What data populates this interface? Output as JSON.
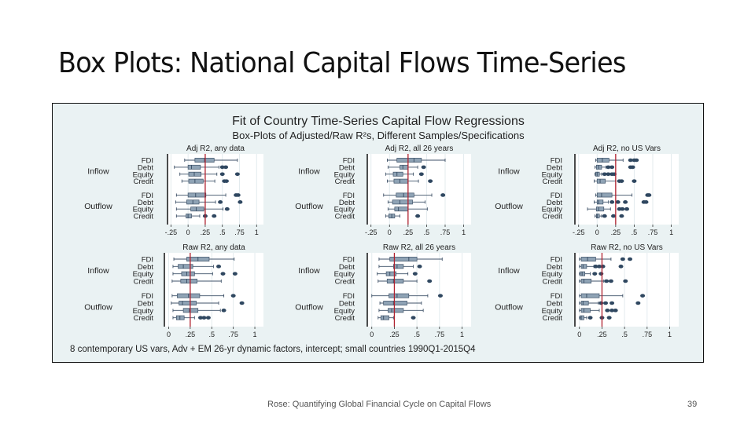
{
  "slide": {
    "title": "Box Plots: National Capital Flows Time-Series",
    "footer": "Rose: Quantifying Global Financial Cycle on Capital Flows",
    "page_number": "39"
  },
  "colors": {
    "background": "#eaf2f3",
    "plot_bg": "#ffffff",
    "box_fill": "#8fa3b5",
    "box_stroke": "#3f5268",
    "outlier": "#2f4760",
    "reference_line": "#b0202e",
    "grid": "#e3ebee"
  },
  "chart_data": {
    "type": "box",
    "title": "Fit of Country Time-Series Capital Flow Regressions",
    "subtitle": "Box-Plots of Adjusted/Raw R²s, Different Samples/Specifications",
    "note": "8 contemporary US vars, Adv + EM 26-yr dynamic factors, intercept; small countries 1990Q1-2015Q4",
    "groups": [
      "Inflow",
      "Outflow"
    ],
    "categories": [
      "FDI",
      "Debt",
      "Equity",
      "Credit"
    ],
    "reference_line": 0.25,
    "panels": [
      {
        "title": "Adj R2, any data",
        "xlim": [
          -0.3,
          1.1
        ],
        "ticks": [
          -0.25,
          0,
          0.25,
          0.5,
          0.75,
          1
        ],
        "tick_labels": [
          "-.25",
          "0",
          ".25",
          ".5",
          ".75",
          "1"
        ],
        "boxes": [
          {
            "group": "Inflow",
            "cat": "FDI",
            "wlo": -0.05,
            "q1": 0.1,
            "med": 0.24,
            "q3": 0.38,
            "whi": 0.72,
            "out": []
          },
          {
            "group": "Inflow",
            "cat": "Debt",
            "wlo": -0.2,
            "q1": 0.0,
            "med": 0.05,
            "q3": 0.18,
            "whi": 0.45,
            "out": [
              0.5,
              0.55
            ]
          },
          {
            "group": "Inflow",
            "cat": "Equity",
            "wlo": -0.12,
            "q1": 0.01,
            "med": 0.09,
            "q3": 0.19,
            "whi": 0.42,
            "out": [
              0.5,
              0.72
            ]
          },
          {
            "group": "Inflow",
            "cat": "Credit",
            "wlo": -0.09,
            "q1": 0.01,
            "med": 0.1,
            "q3": 0.22,
            "whi": 0.39,
            "out": [
              0.53,
              0.56
            ]
          },
          {
            "group": "Outflow",
            "cat": "FDI",
            "wlo": -0.17,
            "q1": 0.0,
            "med": 0.11,
            "q3": 0.26,
            "whi": 0.55,
            "out": [
              0.7,
              0.73
            ]
          },
          {
            "group": "Outflow",
            "cat": "Debt",
            "wlo": -0.18,
            "q1": -0.02,
            "med": 0.07,
            "q3": 0.16,
            "whi": 0.4,
            "out": [
              0.47,
              0.76
            ]
          },
          {
            "group": "Outflow",
            "cat": "Equity",
            "wlo": -0.17,
            "q1": 0.04,
            "med": 0.12,
            "q3": 0.23,
            "whi": 0.51,
            "out": [
              0.57
            ]
          },
          {
            "group": "Outflow",
            "cat": "Credit",
            "wlo": -0.17,
            "q1": -0.03,
            "med": 0.0,
            "q3": 0.05,
            "whi": 0.17,
            "out": [
              0.25,
              0.38
            ]
          }
        ]
      },
      {
        "title": "Adj R2, all 26 years",
        "xlim": [
          -0.3,
          1.1
        ],
        "ticks": [
          -0.25,
          0,
          0.25,
          0.5,
          0.75,
          1
        ],
        "tick_labels": [
          "-.25",
          "0",
          ".25",
          ".5",
          ".75",
          "1"
        ],
        "boxes": [
          {
            "group": "Inflow",
            "cat": "FDI",
            "wlo": -0.03,
            "q1": 0.1,
            "med": 0.33,
            "q3": 0.43,
            "whi": 0.75,
            "out": []
          },
          {
            "group": "Inflow",
            "cat": "Debt",
            "wlo": -0.02,
            "q1": 0.14,
            "med": 0.18,
            "q3": 0.25,
            "whi": 0.38,
            "out": [
              0.46
            ]
          },
          {
            "group": "Inflow",
            "cat": "Equity",
            "wlo": -0.05,
            "q1": 0.05,
            "med": 0.1,
            "q3": 0.18,
            "whi": 0.32,
            "out": [
              0.43
            ]
          },
          {
            "group": "Inflow",
            "cat": "Credit",
            "wlo": -0.03,
            "q1": 0.06,
            "med": 0.14,
            "q3": 0.25,
            "whi": 0.39,
            "out": [
              0.55
            ]
          },
          {
            "group": "Outflow",
            "cat": "FDI",
            "wlo": -0.08,
            "q1": 0.09,
            "med": 0.19,
            "q3": 0.33,
            "whi": 0.57,
            "out": [
              0.72
            ]
          },
          {
            "group": "Outflow",
            "cat": "Debt",
            "wlo": -0.02,
            "q1": 0.04,
            "med": 0.14,
            "q3": 0.31,
            "whi": 0.48,
            "out": []
          },
          {
            "group": "Outflow",
            "cat": "Equity",
            "wlo": -0.02,
            "q1": 0.07,
            "med": 0.12,
            "q3": 0.25,
            "whi": 0.51,
            "out": []
          },
          {
            "group": "Outflow",
            "cat": "Credit",
            "wlo": -0.05,
            "q1": -0.01,
            "med": 0.03,
            "q3": 0.07,
            "whi": 0.14,
            "out": [
              0.38
            ]
          }
        ]
      },
      {
        "title": "Adj R2, no US Vars",
        "xlim": [
          -0.3,
          1.1
        ],
        "ticks": [
          -0.25,
          0,
          0.25,
          0.5,
          0.75,
          1
        ],
        "tick_labels": [
          "-.25",
          "0",
          ".25",
          ".5",
          ".75",
          "1"
        ],
        "boxes": [
          {
            "group": "Inflow",
            "cat": "FDI",
            "wlo": -0.02,
            "q1": 0.0,
            "med": 0.07,
            "q3": 0.16,
            "whi": 0.35,
            "out": [
              0.45,
              0.5,
              0.53
            ]
          },
          {
            "group": "Inflow",
            "cat": "Debt",
            "wlo": -0.03,
            "q1": -0.01,
            "med": 0.02,
            "q3": 0.06,
            "whi": 0.12,
            "out": [
              0.15,
              0.2,
              0.45,
              0.48
            ]
          },
          {
            "group": "Inflow",
            "cat": "Equity",
            "wlo": -0.03,
            "q1": -0.02,
            "med": 0.0,
            "q3": 0.03,
            "whi": 0.06,
            "out": [
              0.1,
              0.15,
              0.2,
              0.23
            ]
          },
          {
            "group": "Inflow",
            "cat": "Credit",
            "wlo": -0.04,
            "q1": 0.0,
            "med": 0.04,
            "q3": 0.11,
            "whi": 0.25,
            "out": [
              0.3,
              0.33,
              0.5
            ]
          },
          {
            "group": "Outflow",
            "cat": "FDI",
            "wlo": -0.02,
            "q1": 0.0,
            "med": 0.06,
            "q3": 0.2,
            "whi": 0.47,
            "out": [
              0.68,
              0.7
            ]
          },
          {
            "group": "Outflow",
            "cat": "Debt",
            "wlo": -0.04,
            "q1": 0.0,
            "med": 0.02,
            "q3": 0.08,
            "whi": 0.15,
            "out": [
              0.2,
              0.28,
              0.38,
              0.63,
              0.66
            ]
          },
          {
            "group": "Outflow",
            "cat": "Equity",
            "wlo": -0.13,
            "q1": -0.01,
            "med": 0.02,
            "q3": 0.09,
            "whi": 0.18,
            "out": [
              0.3,
              0.34,
              0.4
            ]
          },
          {
            "group": "Outflow",
            "cat": "Credit",
            "wlo": -0.03,
            "q1": -0.01,
            "med": 0.0,
            "q3": 0.03,
            "whi": 0.06,
            "out": [
              0.1,
              0.22,
              0.33
            ]
          }
        ]
      },
      {
        "title": "Raw R2, any data",
        "xlim": [
          -0.05,
          1.1
        ],
        "ticks": [
          0,
          0.25,
          0.5,
          0.75,
          1
        ],
        "tick_labels": [
          "0",
          ".25",
          ".5",
          ".75",
          "1"
        ],
        "boxes": [
          {
            "group": "Inflow",
            "cat": "FDI",
            "wlo": 0.06,
            "q1": 0.21,
            "med": 0.34,
            "q3": 0.47,
            "whi": 0.76,
            "out": []
          },
          {
            "group": "Inflow",
            "cat": "Debt",
            "wlo": 0.05,
            "q1": 0.11,
            "med": 0.17,
            "q3": 0.28,
            "whi": 0.52,
            "out": [
              0.58
            ]
          },
          {
            "group": "Inflow",
            "cat": "Equity",
            "wlo": 0.05,
            "q1": 0.15,
            "med": 0.21,
            "q3": 0.3,
            "whi": 0.51,
            "out": [
              0.63,
              0.77
            ]
          },
          {
            "group": "Inflow",
            "cat": "Credit",
            "wlo": 0.04,
            "q1": 0.14,
            "med": 0.21,
            "q3": 0.33,
            "whi": 0.61,
            "out": []
          },
          {
            "group": "Outflow",
            "cat": "FDI",
            "wlo": 0.04,
            "q1": 0.1,
            "med": 0.23,
            "q3": 0.36,
            "whi": 0.64,
            "out": [
              0.75
            ]
          },
          {
            "group": "Outflow",
            "cat": "Debt",
            "wlo": 0.03,
            "q1": 0.12,
            "med": 0.16,
            "q3": 0.32,
            "whi": 0.58,
            "out": [
              0.85
            ]
          },
          {
            "group": "Outflow",
            "cat": "Equity",
            "wlo": 0.05,
            "q1": 0.17,
            "med": 0.24,
            "q3": 0.34,
            "whi": 0.6,
            "out": [
              0.64
            ]
          },
          {
            "group": "Outflow",
            "cat": "Credit",
            "wlo": 0.05,
            "q1": 0.09,
            "med": 0.13,
            "q3": 0.18,
            "whi": 0.3,
            "out": [
              0.37,
              0.41,
              0.46
            ]
          }
        ]
      },
      {
        "title": "Raw R2, all 26 years",
        "xlim": [
          -0.05,
          1.1
        ],
        "ticks": [
          0,
          0.25,
          0.5,
          0.75,
          1
        ],
        "tick_labels": [
          "0",
          ".25",
          ".5",
          ".75",
          "1"
        ],
        "boxes": [
          {
            "group": "Inflow",
            "cat": "FDI",
            "wlo": 0.08,
            "q1": 0.2,
            "med": 0.41,
            "q3": 0.5,
            "whi": 0.78,
            "out": []
          },
          {
            "group": "Inflow",
            "cat": "Debt",
            "wlo": 0.08,
            "q1": 0.24,
            "med": 0.28,
            "q3": 0.35,
            "whi": 0.46,
            "out": [
              0.53
            ]
          },
          {
            "group": "Inflow",
            "cat": "Equity",
            "wlo": 0.06,
            "q1": 0.16,
            "med": 0.2,
            "q3": 0.27,
            "whi": 0.4,
            "out": [
              0.48
            ]
          },
          {
            "group": "Inflow",
            "cat": "Credit",
            "wlo": 0.07,
            "q1": 0.17,
            "med": 0.24,
            "q3": 0.35,
            "whi": 0.5,
            "out": [
              0.64
            ]
          },
          {
            "group": "Outflow",
            "cat": "FDI",
            "wlo": 0.0,
            "q1": 0.19,
            "med": 0.28,
            "q3": 0.41,
            "whi": 0.62,
            "out": [
              0.76
            ]
          },
          {
            "group": "Outflow",
            "cat": "Debt",
            "wlo": 0.09,
            "q1": 0.13,
            "med": 0.24,
            "q3": 0.39,
            "whi": 0.55,
            "out": []
          },
          {
            "group": "Outflow",
            "cat": "Equity",
            "wlo": 0.08,
            "q1": 0.18,
            "med": 0.22,
            "q3": 0.35,
            "whi": 0.57,
            "out": []
          },
          {
            "group": "Outflow",
            "cat": "Credit",
            "wlo": 0.07,
            "q1": 0.1,
            "med": 0.13,
            "q3": 0.19,
            "whi": 0.24,
            "out": [
              0.46
            ]
          }
        ]
      },
      {
        "title": "Raw R2, no US Vars",
        "xlim": [
          -0.05,
          1.1
        ],
        "ticks": [
          0,
          0.25,
          0.5,
          0.75,
          1
        ],
        "tick_labels": [
          "0",
          ".25",
          ".5",
          ".75",
          "1"
        ],
        "boxes": [
          {
            "group": "Inflow",
            "cat": "FDI",
            "wlo": 0.0,
            "q1": 0.02,
            "med": 0.09,
            "q3": 0.18,
            "whi": 0.35,
            "out": [
              0.48,
              0.56
            ]
          },
          {
            "group": "Inflow",
            "cat": "Debt",
            "wlo": 0.0,
            "q1": 0.02,
            "med": 0.04,
            "q3": 0.08,
            "whi": 0.16,
            "out": [
              0.18,
              0.22,
              0.26,
              0.46
            ]
          },
          {
            "group": "Inflow",
            "cat": "Equity",
            "wlo": 0.0,
            "q1": 0.01,
            "med": 0.03,
            "q3": 0.06,
            "whi": 0.12,
            "out": [
              0.17,
              0.24
            ]
          },
          {
            "group": "Inflow",
            "cat": "Credit",
            "wlo": 0.0,
            "q1": 0.02,
            "med": 0.05,
            "q3": 0.13,
            "whi": 0.27,
            "out": [
              0.3,
              0.35,
              0.51
            ]
          },
          {
            "group": "Outflow",
            "cat": "FDI",
            "wlo": 0.0,
            "q1": 0.02,
            "med": 0.08,
            "q3": 0.22,
            "whi": 0.48,
            "out": [
              0.7
            ]
          },
          {
            "group": "Outflow",
            "cat": "Debt",
            "wlo": 0.0,
            "q1": 0.02,
            "med": 0.04,
            "q3": 0.1,
            "whi": 0.21,
            "out": [
              0.24,
              0.29,
              0.36,
              0.65
            ]
          },
          {
            "group": "Outflow",
            "cat": "Equity",
            "wlo": 0.0,
            "q1": 0.02,
            "med": 0.05,
            "q3": 0.12,
            "whi": 0.22,
            "out": [
              0.31,
              0.36,
              0.4
            ]
          },
          {
            "group": "Outflow",
            "cat": "Credit",
            "wlo": 0.0,
            "q1": 0.01,
            "med": 0.02,
            "q3": 0.05,
            "whi": 0.08,
            "out": [
              0.12,
              0.25,
              0.33
            ]
          }
        ]
      }
    ]
  }
}
